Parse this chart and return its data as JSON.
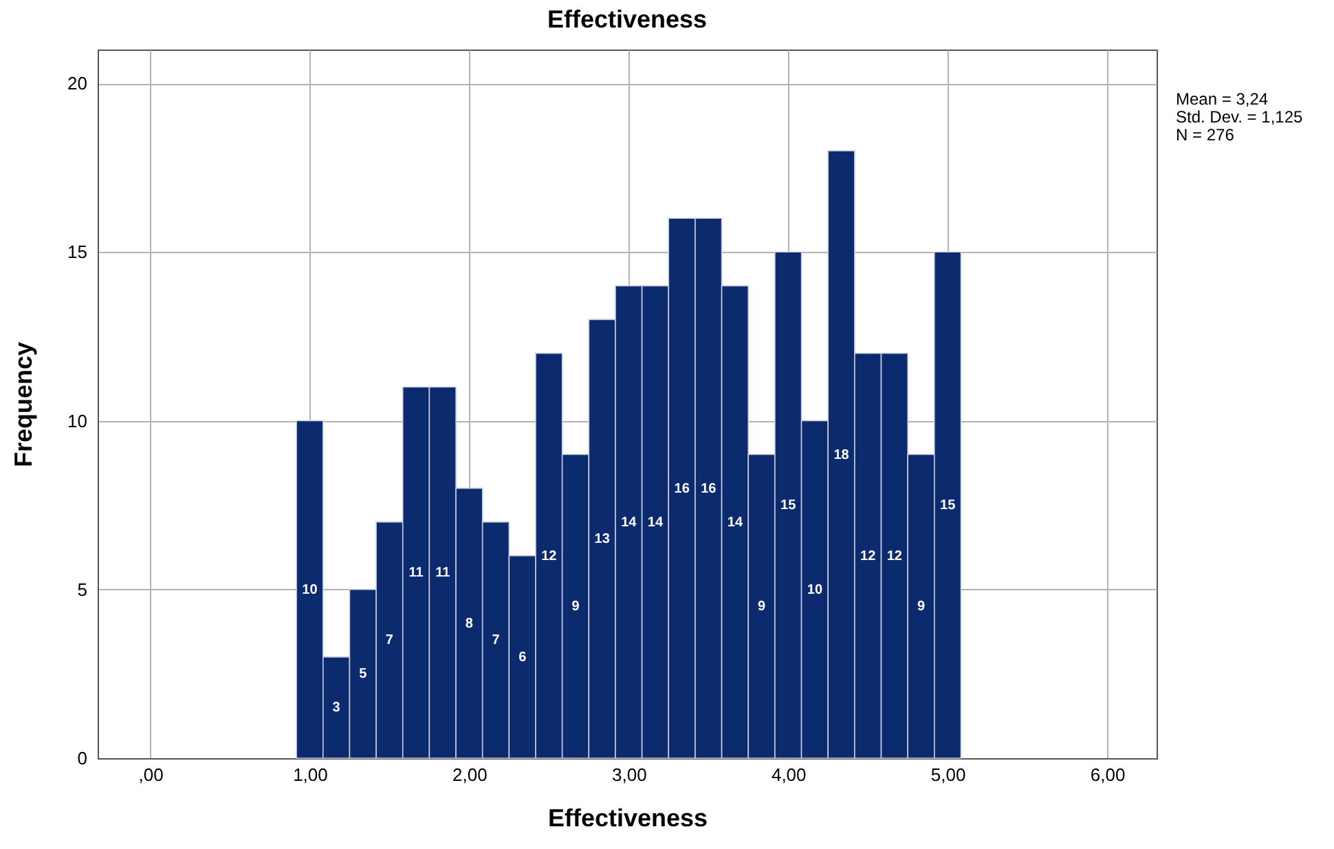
{
  "chart_data": {
    "type": "histogram",
    "title": "Effectiveness",
    "xlabel": "Effectiveness",
    "ylabel": "Frequency",
    "bins": [
      0.9167,
      1.0833,
      1.25,
      1.4167,
      1.5833,
      1.75,
      1.9167,
      2.0833,
      2.25,
      2.4167,
      2.5833,
      2.75,
      2.9167,
      3.0833,
      3.25,
      3.4167,
      3.5833,
      3.75,
      3.9167,
      4.0833,
      4.25,
      4.4167,
      4.5833,
      4.75,
      4.9167,
      5.0833
    ],
    "values": [
      10,
      3,
      5,
      7,
      11,
      11,
      8,
      7,
      6,
      12,
      9,
      13,
      14,
      14,
      16,
      16,
      14,
      9,
      15,
      10,
      18,
      12,
      12,
      9,
      15
    ],
    "color": "#0c2a6e",
    "data_labels": true,
    "grid": true,
    "xlim": [
      -0.33,
      6.31
    ],
    "xticks": [
      {
        "value": 0,
        "label": ",00"
      },
      {
        "value": 1,
        "label": "1,00"
      },
      {
        "value": 2,
        "label": "2,00"
      },
      {
        "value": 3,
        "label": "3,00"
      },
      {
        "value": 4,
        "label": "4,00"
      },
      {
        "value": 5,
        "label": "5,00"
      },
      {
        "value": 6,
        "label": "6,00"
      }
    ],
    "ylim": [
      0,
      21
    ],
    "yticks": [
      0,
      5,
      10,
      15,
      20
    ],
    "annotations": [
      "Mean = 3,24",
      "Std. Dev. = 1,125",
      "N = 276"
    ]
  }
}
